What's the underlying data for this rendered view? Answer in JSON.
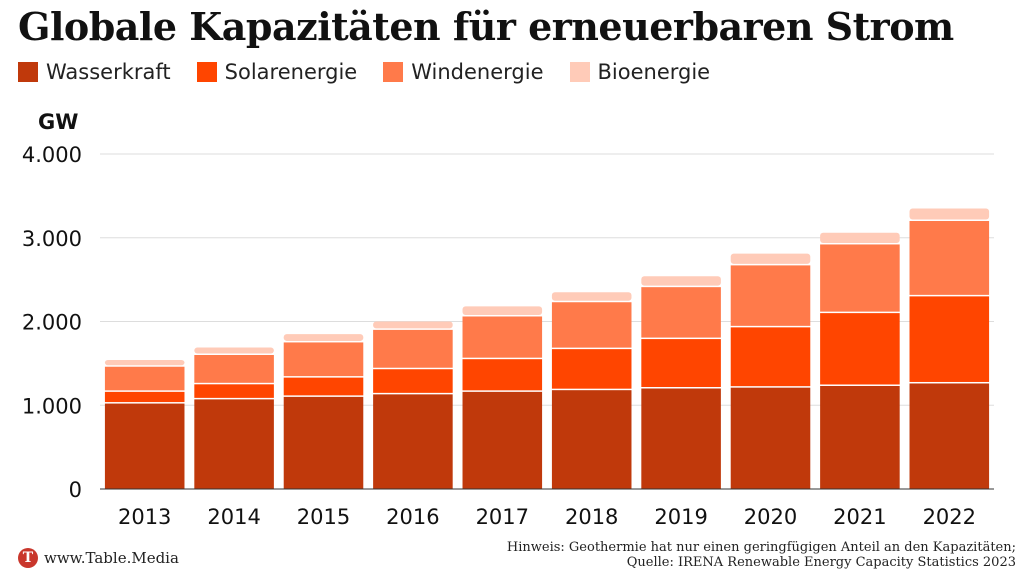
{
  "chart_data": {
    "type": "bar",
    "stacked": true,
    "title": "Globale Kapazitäten für erneuerbaren Strom",
    "ylabel": "GW",
    "ylim": [
      0,
      4000
    ],
    "yticks": [
      0,
      1000,
      2000,
      3000,
      4000
    ],
    "ytick_labels": [
      "0",
      "1.000",
      "2.000",
      "3.000",
      "4.000"
    ],
    "grid": true,
    "legend_position": "top-left",
    "categories": [
      "2013",
      "2014",
      "2015",
      "2016",
      "2017",
      "2018",
      "2019",
      "2020",
      "2021",
      "2022"
    ],
    "series": [
      {
        "name": "Wasserkraft",
        "color": "#c0390b",
        "values": [
          1020,
          1070,
          1100,
          1130,
          1160,
          1180,
          1200,
          1210,
          1230,
          1260
        ]
      },
      {
        "name": "Solarenergie",
        "color": "#ff4500",
        "values": [
          140,
          180,
          230,
          300,
          390,
          490,
          590,
          720,
          870,
          1040
        ]
      },
      {
        "name": "Windenergie",
        "color": "#ff7a4a",
        "values": [
          300,
          350,
          420,
          470,
          510,
          560,
          620,
          740,
          820,
          900
        ]
      },
      {
        "name": "Bioenergie",
        "color": "#ffcbb8",
        "values": [
          80,
          90,
          100,
          100,
          120,
          120,
          130,
          140,
          140,
          150
        ]
      }
    ]
  },
  "footer": {
    "logo_letter": "T",
    "site": "www.Table.Media",
    "note_line1": "Hinweis: Geothermie hat nur einen geringfügigen Anteil an den Kapazitäten;",
    "note_line2": "Quelle: IRENA Renewable Energy Capacity Statistics 2023"
  }
}
